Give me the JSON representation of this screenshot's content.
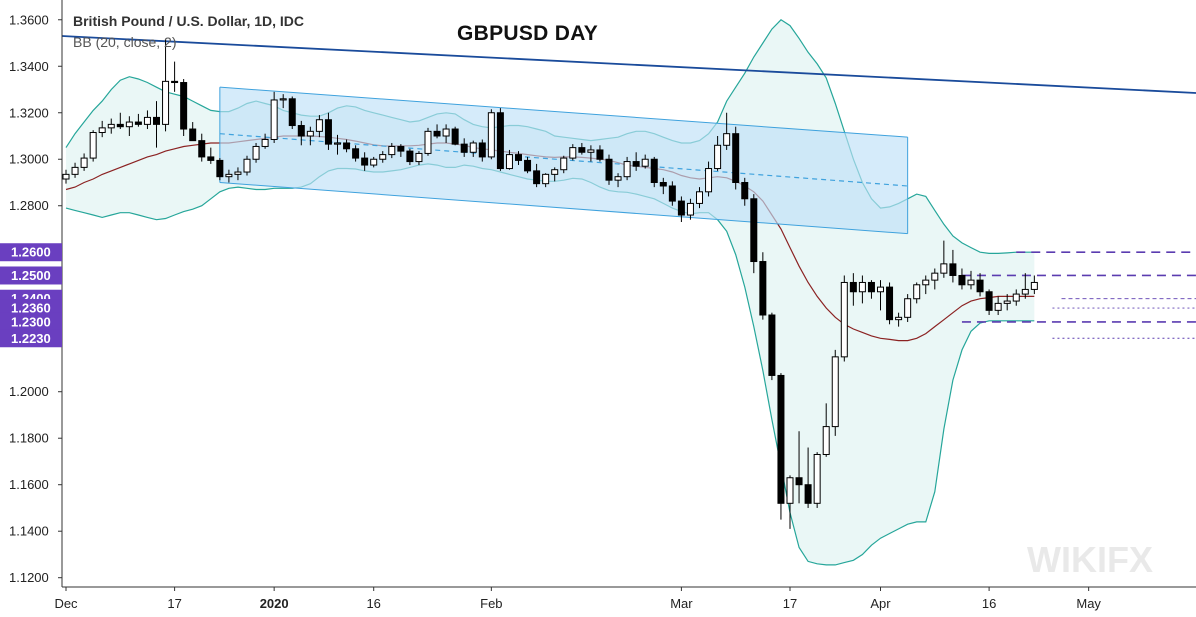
{
  "legend": {
    "symbol": "British Pound / U.S. Dollar, 1D, IDC",
    "indicator": "BB (20, close, 2)"
  },
  "title": "GBPUSD DAY",
  "colors": {
    "bull_candle": "#ffffff",
    "bear_candle": "#000000",
    "bb_band": "#26a69a",
    "bb_fill": "#eaf7f6",
    "basis": "#8b2222",
    "trendline": "#1a4b9b",
    "channel_fill": "#bfe1f7",
    "channel_line": "#3fa2dd",
    "level_line": "#5b3cb0",
    "badge": "#6a3fc0"
  },
  "chart_data": {
    "type": "candlestick",
    "ylim": [
      1.116,
      1.3685
    ],
    "y_ticks": [
      "1.3600",
      "1.3400",
      "1.3200",
      "1.3000",
      "1.2800",
      "1.2600",
      "1.2500",
      "1.2400",
      "1.2360",
      "1.2300",
      "1.2230",
      "1.2000",
      "1.1800",
      "1.1600",
      "1.1400",
      "1.1200"
    ],
    "highlighted_levels": [
      "1.2600",
      "1.2500",
      "1.2400",
      "1.2360",
      "1.2300",
      "1.2230"
    ],
    "x_ticks": [
      {
        "label": "Dec",
        "bold": false
      },
      {
        "label": "17",
        "bold": false
      },
      {
        "label": "2020",
        "bold": true
      },
      {
        "label": "16",
        "bold": false
      },
      {
        "label": "Feb",
        "bold": false
      },
      {
        "label": "Mar",
        "bold": false
      },
      {
        "label": "17",
        "bold": false
      },
      {
        "label": "Apr",
        "bold": false
      },
      {
        "label": "16",
        "bold": false
      },
      {
        "label": "May",
        "bold": false
      }
    ],
    "ohlc": [
      [
        1.2915,
        1.2955,
        1.2895,
        1.2935
      ],
      [
        1.2935,
        1.2985,
        1.292,
        1.2965
      ],
      [
        1.2965,
        1.3025,
        1.295,
        1.3005
      ],
      [
        1.3005,
        1.3125,
        1.299,
        1.3115
      ],
      [
        1.3115,
        1.3165,
        1.3095,
        1.3135
      ],
      [
        1.3135,
        1.3175,
        1.311,
        1.315
      ],
      [
        1.315,
        1.32,
        1.313,
        1.314
      ],
      [
        1.314,
        1.3185,
        1.31,
        1.316
      ],
      [
        1.316,
        1.3195,
        1.314,
        1.315
      ],
      [
        1.315,
        1.321,
        1.313,
        1.318
      ],
      [
        1.318,
        1.325,
        1.305,
        1.315
      ],
      [
        1.315,
        1.3515,
        1.312,
        1.3335
      ],
      [
        1.3335,
        1.342,
        1.329,
        1.333
      ],
      [
        1.333,
        1.3345,
        1.31,
        1.313
      ],
      [
        1.313,
        1.316,
        1.308,
        1.308
      ],
      [
        1.308,
        1.311,
        1.299,
        1.301
      ],
      [
        1.301,
        1.305,
        1.298,
        1.2995
      ],
      [
        1.2995,
        1.3005,
        1.291,
        1.2925
      ],
      [
        1.2925,
        1.2955,
        1.29,
        1.2935
      ],
      [
        1.2935,
        1.2965,
        1.291,
        1.2945
      ],
      [
        1.2945,
        1.3015,
        1.293,
        1.3
      ],
      [
        1.3,
        1.307,
        1.2985,
        1.3055
      ],
      [
        1.3055,
        1.311,
        1.3045,
        1.3085
      ],
      [
        1.3085,
        1.329,
        1.307,
        1.3255
      ],
      [
        1.3255,
        1.328,
        1.322,
        1.326
      ],
      [
        1.326,
        1.327,
        1.313,
        1.3145
      ],
      [
        1.3145,
        1.3165,
        1.306,
        1.31
      ],
      [
        1.31,
        1.314,
        1.306,
        1.312
      ],
      [
        1.312,
        1.319,
        1.3095,
        1.317
      ],
      [
        1.317,
        1.32,
        1.304,
        1.3065
      ],
      [
        1.3065,
        1.3105,
        1.302,
        1.307
      ],
      [
        1.307,
        1.3085,
        1.303,
        1.3045
      ],
      [
        1.3045,
        1.306,
        1.299,
        1.3005
      ],
      [
        1.3005,
        1.303,
        1.295,
        1.2975
      ],
      [
        1.2975,
        1.301,
        1.2965,
        1.3
      ],
      [
        1.3,
        1.3035,
        1.2985,
        1.302
      ],
      [
        1.302,
        1.307,
        1.3005,
        1.3055
      ],
      [
        1.3055,
        1.3065,
        1.301,
        1.3035
      ],
      [
        1.3035,
        1.3045,
        1.2975,
        1.299
      ],
      [
        1.299,
        1.3035,
        1.2975,
        1.3025
      ],
      [
        1.3025,
        1.3135,
        1.3015,
        1.312
      ],
      [
        1.312,
        1.315,
        1.309,
        1.31
      ],
      [
        1.31,
        1.315,
        1.307,
        1.313
      ],
      [
        1.313,
        1.314,
        1.306,
        1.3065
      ],
      [
        1.3065,
        1.309,
        1.301,
        1.303
      ],
      [
        1.303,
        1.308,
        1.301,
        1.307
      ],
      [
        1.307,
        1.3085,
        1.299,
        1.301
      ],
      [
        1.301,
        1.3215,
        1.3,
        1.32
      ],
      [
        1.32,
        1.322,
        1.295,
        1.296
      ],
      [
        1.296,
        1.304,
        1.2955,
        1.302
      ],
      [
        1.302,
        1.3035,
        1.2975,
        1.2995
      ],
      [
        1.2995,
        1.301,
        1.294,
        1.295
      ],
      [
        1.295,
        1.298,
        1.288,
        1.2895
      ],
      [
        1.2895,
        1.294,
        1.288,
        1.2935
      ],
      [
        1.2935,
        1.2965,
        1.2905,
        1.2955
      ],
      [
        1.2955,
        1.3015,
        1.294,
        1.3005
      ],
      [
        1.3005,
        1.3065,
        1.2995,
        1.305
      ],
      [
        1.305,
        1.307,
        1.302,
        1.303
      ],
      [
        1.303,
        1.306,
        1.299,
        1.304
      ],
      [
        1.304,
        1.306,
        1.299,
        1.3
      ],
      [
        1.3,
        1.302,
        1.289,
        1.291
      ],
      [
        1.291,
        1.294,
        1.288,
        1.2925
      ],
      [
        1.2925,
        1.301,
        1.291,
        1.299
      ],
      [
        1.299,
        1.303,
        1.295,
        1.297
      ],
      [
        1.297,
        1.302,
        1.296,
        1.3
      ],
      [
        1.3,
        1.301,
        1.288,
        1.29
      ],
      [
        1.29,
        1.292,
        1.285,
        1.2885
      ],
      [
        1.2885,
        1.2905,
        1.28,
        1.282
      ],
      [
        1.282,
        1.284,
        1.273,
        1.276
      ],
      [
        1.276,
        1.283,
        1.274,
        1.281
      ],
      [
        1.281,
        1.288,
        1.279,
        1.286
      ],
      [
        1.286,
        1.299,
        1.284,
        1.296
      ],
      [
        1.296,
        1.31,
        1.295,
        1.306
      ],
      [
        1.306,
        1.32,
        1.304,
        1.311
      ],
      [
        1.311,
        1.314,
        1.287,
        1.29
      ],
      [
        1.29,
        1.292,
        1.28,
        1.283
      ],
      [
        1.283,
        1.285,
        1.251,
        1.256
      ],
      [
        1.256,
        1.26,
        1.231,
        1.233
      ],
      [
        1.233,
        1.234,
        1.205,
        1.207
      ],
      [
        1.207,
        1.208,
        1.145,
        1.152
      ],
      [
        1.152,
        1.164,
        1.141,
        1.163
      ],
      [
        1.163,
        1.183,
        1.152,
        1.16
      ],
      [
        1.16,
        1.176,
        1.15,
        1.152
      ],
      [
        1.152,
        1.174,
        1.15,
        1.173
      ],
      [
        1.173,
        1.195,
        1.172,
        1.185
      ],
      [
        1.185,
        1.218,
        1.181,
        1.215
      ],
      [
        1.215,
        1.25,
        1.213,
        1.247
      ],
      [
        1.247,
        1.251,
        1.237,
        1.243
      ],
      [
        1.243,
        1.25,
        1.238,
        1.247
      ],
      [
        1.247,
        1.248,
        1.24,
        1.243
      ],
      [
        1.243,
        1.248,
        1.235,
        1.245
      ],
      [
        1.245,
        1.247,
        1.229,
        1.231
      ],
      [
        1.231,
        1.234,
        1.228,
        1.232
      ],
      [
        1.232,
        1.242,
        1.23,
        1.24
      ],
      [
        1.24,
        1.247,
        1.238,
        1.246
      ],
      [
        1.246,
        1.25,
        1.242,
        1.248
      ],
      [
        1.248,
        1.253,
        1.244,
        1.251
      ],
      [
        1.251,
        1.265,
        1.249,
        1.255
      ],
      [
        1.255,
        1.261,
        1.247,
        1.25
      ],
      [
        1.25,
        1.253,
        1.244,
        1.246
      ],
      [
        1.246,
        1.252,
        1.244,
        1.248
      ],
      [
        1.248,
        1.251,
        1.241,
        1.243
      ],
      [
        1.243,
        1.244,
        1.233,
        1.235
      ],
      [
        1.235,
        1.241,
        1.233,
        1.238
      ],
      [
        1.238,
        1.242,
        1.235,
        1.239
      ],
      [
        1.239,
        1.244,
        1.237,
        1.242
      ],
      [
        1.242,
        1.251,
        1.24,
        1.244
      ],
      [
        1.244,
        1.25,
        1.242,
        1.247
      ]
    ],
    "bb_upper": [
      1.305,
      1.311,
      1.316,
      1.321,
      1.325,
      1.33,
      1.334,
      1.3355,
      1.3345,
      1.333,
      1.331,
      1.329,
      1.328,
      1.327,
      1.325,
      1.323,
      1.321,
      1.3205,
      1.3205,
      1.322,
      1.324,
      1.325,
      1.324,
      1.323,
      1.321,
      1.32,
      1.319,
      1.3185,
      1.3185,
      1.32,
      1.322,
      1.323,
      1.3225,
      1.321,
      1.32,
      1.319,
      1.318,
      1.317,
      1.316,
      1.3165,
      1.318,
      1.3195,
      1.32,
      1.3195,
      1.317,
      1.315,
      1.314,
      1.3135,
      1.314,
      1.3145,
      1.3145,
      1.314,
      1.313,
      1.312,
      1.31,
      1.3095,
      1.309,
      1.3085,
      1.308,
      1.3085,
      1.309,
      1.3095,
      1.311,
      1.312,
      1.312,
      1.311,
      1.3095,
      1.308,
      1.307,
      1.307,
      1.308,
      1.311,
      1.316,
      1.325,
      1.331,
      1.337,
      1.344,
      1.35,
      1.356,
      1.36,
      1.3575,
      1.352,
      1.346,
      1.341,
      1.335,
      1.324,
      1.312,
      1.3,
      1.29,
      1.283,
      1.279,
      1.2795,
      1.281,
      1.283,
      1.285,
      1.284,
      1.278,
      1.272,
      1.267,
      1.264,
      1.262,
      1.26,
      1.2595,
      1.2595,
      1.2597,
      1.26,
      1.26,
      1.26
    ],
    "bb_lower": [
      1.279,
      1.278,
      1.277,
      1.276,
      1.275,
      1.276,
      1.277,
      1.277,
      1.276,
      1.275,
      1.274,
      1.2745,
      1.276,
      1.2775,
      1.2785,
      1.28,
      1.283,
      1.286,
      1.2875,
      1.288,
      1.2875,
      1.287,
      1.287,
      1.2875,
      1.2875,
      1.2875,
      1.288,
      1.2895,
      1.2925,
      1.295,
      1.296,
      1.296,
      1.2958,
      1.295,
      1.2945,
      1.2945,
      1.295,
      1.2955,
      1.2965,
      1.2975,
      1.298,
      1.2975,
      1.2965,
      1.2965,
      1.2975,
      1.297,
      1.296,
      1.2955,
      1.2945,
      1.2935,
      1.2925,
      1.2915,
      1.291,
      1.2905,
      1.2905,
      1.291,
      1.2918,
      1.2915,
      1.29,
      1.288,
      1.2865,
      1.286,
      1.2858,
      1.285,
      1.284,
      1.283,
      1.281,
      1.279,
      1.2775,
      1.2765,
      1.277,
      1.277,
      1.274,
      1.269,
      1.259,
      1.245,
      1.228,
      1.209,
      1.188,
      1.168,
      1.148,
      1.133,
      1.127,
      1.126,
      1.1255,
      1.1255,
      1.1265,
      1.1275,
      1.13,
      1.134,
      1.137,
      1.139,
      1.141,
      1.143,
      1.144,
      1.144,
      1.157,
      1.184,
      1.205,
      1.218,
      1.226,
      1.2295,
      1.2305,
      1.2305,
      1.2305,
      1.2305,
      1.2305,
      1.2305
    ],
    "bb_basis": [
      1.287,
      1.288,
      1.29,
      1.2915,
      1.2935,
      1.295,
      1.2965,
      1.298,
      1.2995,
      1.301,
      1.302,
      1.3035,
      1.3045,
      1.3055,
      1.306,
      1.3065,
      1.307,
      1.307,
      1.307,
      1.3075,
      1.308,
      1.3085,
      1.309,
      1.3095,
      1.31,
      1.31,
      1.31,
      1.31,
      1.3098,
      1.3095,
      1.309,
      1.3085,
      1.3078,
      1.307,
      1.3062,
      1.3058,
      1.3057,
      1.3058,
      1.3058,
      1.306,
      1.3065,
      1.307,
      1.307,
      1.3065,
      1.306,
      1.305,
      1.3045,
      1.304,
      1.3035,
      1.303,
      1.3025,
      1.302,
      1.3015,
      1.301,
      1.3008,
      1.301,
      1.301,
      1.3008,
      1.3005,
      1.3,
      1.2995,
      1.2985,
      1.2975,
      1.297,
      1.2965,
      1.296,
      1.2955,
      1.2945,
      1.293,
      1.292,
      1.2915,
      1.292,
      1.2925,
      1.292,
      1.2905,
      1.2885,
      1.286,
      1.282,
      1.276,
      1.27,
      1.262,
      1.254,
      1.247,
      1.241,
      1.236,
      1.232,
      1.229,
      1.227,
      1.2255,
      1.224,
      1.223,
      1.2225,
      1.222,
      1.222,
      1.223,
      1.225,
      1.228,
      1.231,
      1.234,
      1.237,
      1.239,
      1.24,
      1.2405,
      1.241,
      1.241,
      1.241,
      1.241,
      1.241
    ],
    "trendline": {
      "x_from": 0,
      "y_from": 1.353,
      "x_to": 140,
      "y_to": 1.3285
    },
    "channel": {
      "x_from": 17,
      "x_to": 93,
      "upper_from": 1.331,
      "upper_to": 1.3095,
      "lower_from": 1.29,
      "lower_to": 1.268,
      "mid_from": 1.311,
      "mid_to": 1.2885
    },
    "levels": [
      {
        "value": 1.26,
        "style": "dashed-bold",
        "x_from": 105
      },
      {
        "value": 1.25,
        "style": "dashed-bold",
        "x_from": 99
      },
      {
        "value": 1.24,
        "style": "dashed-thin",
        "x_from": 110
      },
      {
        "value": 1.236,
        "style": "dotted-thin",
        "x_from": 109
      },
      {
        "value": 1.23,
        "style": "dashed-bold",
        "x_from": 99
      },
      {
        "value": 1.223,
        "style": "dotted-thin",
        "x_from": 109
      }
    ]
  },
  "watermark": "WIKIFX"
}
